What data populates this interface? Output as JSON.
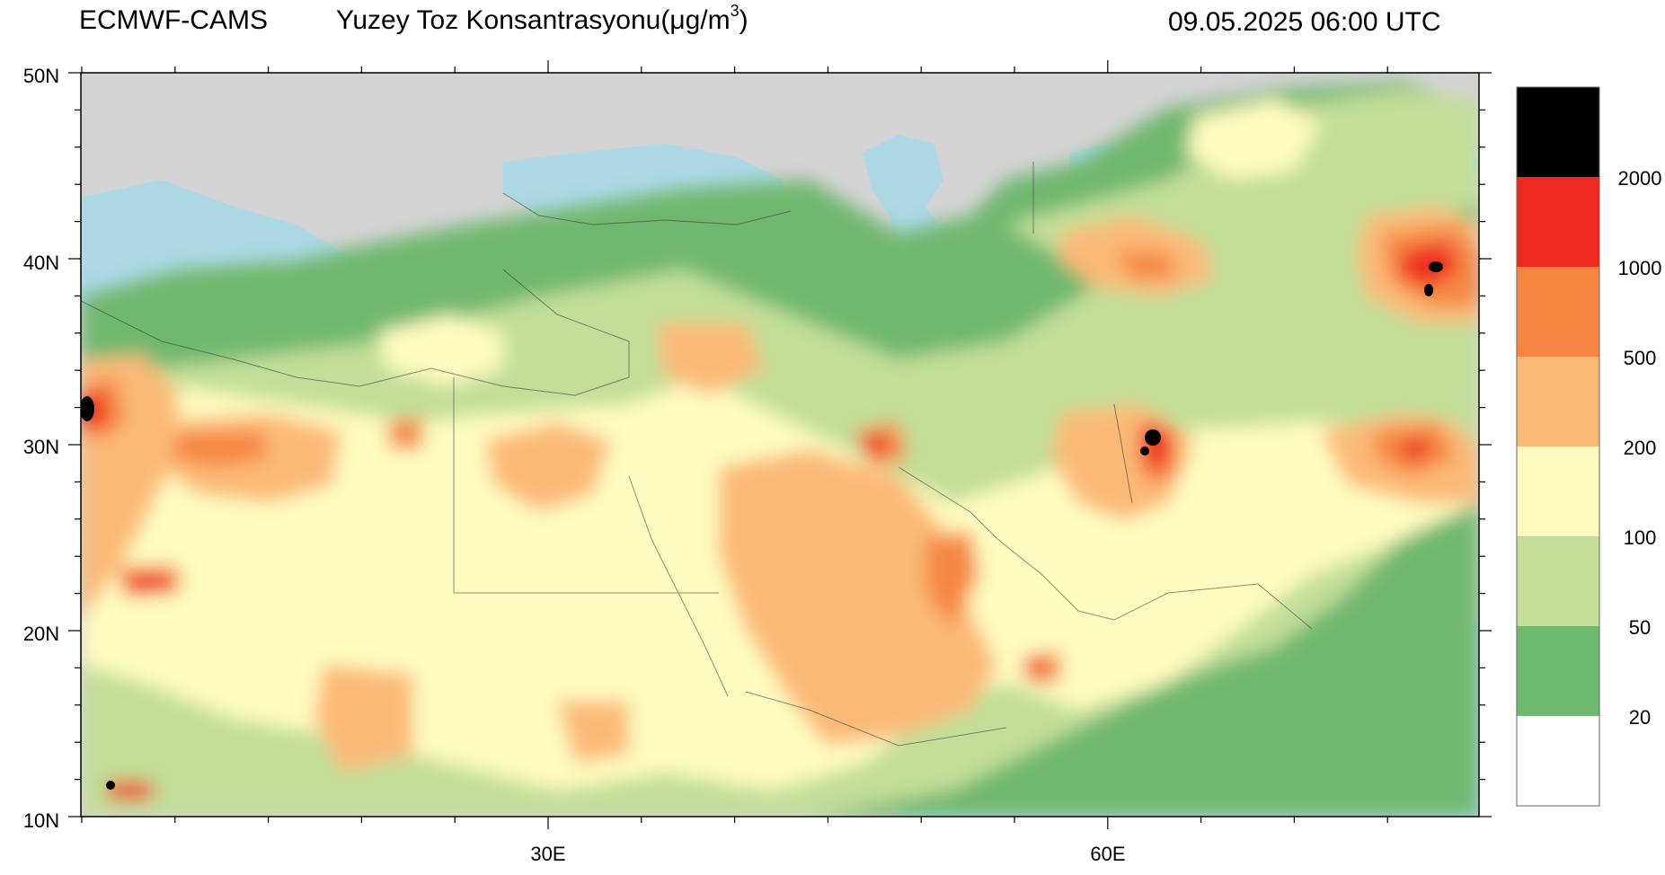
{
  "header": {
    "source": "ECMWF-CAMS",
    "title_main": "Yuzey Toz Konsantrasyonu(μg/m",
    "title_sup": "3",
    "title_close": ")",
    "datetime": "09.05.2025 06:00 UTC"
  },
  "axes": {
    "lat_labels": [
      "50N",
      "40N",
      "30N",
      "20N",
      "10N"
    ],
    "lon_labels": [
      "30E",
      "60E"
    ]
  },
  "legend": {
    "colors": [
      "#000000",
      "#ee2a20",
      "#f68743",
      "#fbb977",
      "#fefbc0",
      "#c2de98",
      "#6fb870",
      "#ffffff"
    ],
    "labels": [
      "2000",
      "1000",
      "500",
      "200",
      "100",
      "50",
      "20"
    ]
  },
  "map_colors": {
    "land": "#d3d3d3",
    "water": "#add8e6"
  }
}
